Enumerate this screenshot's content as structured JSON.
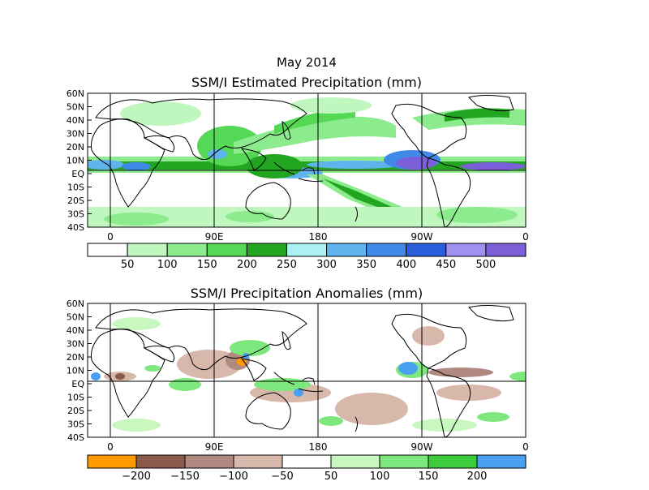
{
  "figure": {
    "title_line1": "May 2014",
    "title_line2": "SSM/I Estimated Precipitation (mm)"
  },
  "panel_top": {
    "lat_labels": [
      "60N",
      "50N",
      "40N",
      "30N",
      "20N",
      "10N",
      "EQ",
      "10S",
      "20S",
      "30S",
      "40S"
    ],
    "lon_labels": [
      "0",
      "90E",
      "180",
      "90W",
      "0"
    ],
    "colorbar": {
      "colors": [
        "#ffffff",
        "#bff7bf",
        "#8ceb8c",
        "#55d855",
        "#22a622",
        "#aaf0f4",
        "#5fb4ee",
        "#3f8ae8",
        "#2a5fdc",
        "#a090f0",
        "#7a5fd8"
      ],
      "labels": [
        "50",
        "100",
        "150",
        "200",
        "250",
        "300",
        "350",
        "400",
        "450",
        "500"
      ]
    }
  },
  "panel_bottom": {
    "title": "SSM/I Precipitation Anomalies (mm)",
    "lat_labels": [
      "60N",
      "50N",
      "40N",
      "30N",
      "20N",
      "10N",
      "EQ",
      "10S",
      "20S",
      "30S",
      "40S"
    ],
    "lon_labels": [
      "0",
      "90E",
      "180",
      "90W",
      "0"
    ],
    "colorbar": {
      "colors": [
        "#ff9a00",
        "#8a5a4a",
        "#b08a80",
        "#d8b8aa",
        "#ffffff",
        "#c8f8c0",
        "#7ee87e",
        "#3ccc3c",
        "#4aa0f0"
      ],
      "labels": [
        "−200",
        "−150",
        "−100",
        "−50",
        "50",
        "100",
        "150",
        "200"
      ]
    }
  }
}
